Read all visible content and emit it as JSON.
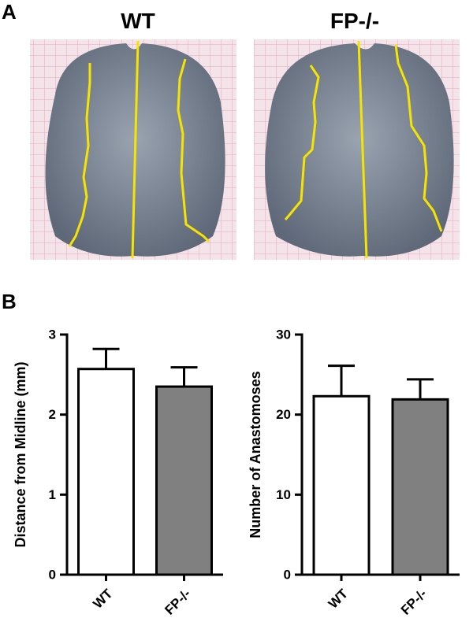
{
  "panel_a": {
    "label": "A",
    "titles": [
      "WT",
      "FP-/-"
    ]
  },
  "panel_b": {
    "label": "B"
  },
  "chart_data": [
    {
      "type": "bar",
      "ylabel": "Distance from Midline (mm)",
      "categories": [
        "WT",
        "FP-/-"
      ],
      "values": [
        2.57,
        2.35
      ],
      "errors": [
        0.25,
        0.24
      ],
      "colors": [
        "#ffffff",
        "#808080"
      ],
      "ylim": [
        0,
        3
      ],
      "yticks": [
        0,
        1,
        2,
        3
      ]
    },
    {
      "type": "bar",
      "ylabel": "Number of Anastomoses",
      "categories": [
        "WT",
        "FP-/-"
      ],
      "values": [
        22.3,
        21.9
      ],
      "errors": [
        3.8,
        2.5
      ],
      "colors": [
        "#ffffff",
        "#808080"
      ],
      "ylim": [
        0,
        30
      ],
      "yticks": [
        0,
        10,
        20,
        30
      ]
    }
  ]
}
